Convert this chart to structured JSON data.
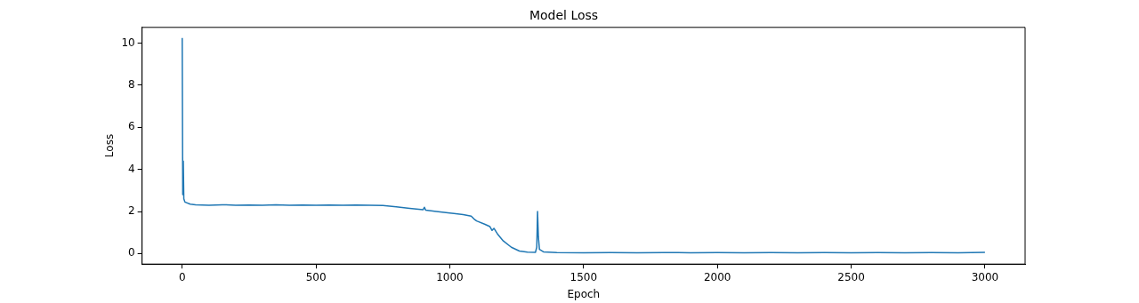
{
  "chart_data": {
    "type": "line",
    "title": "Model Loss",
    "xlabel": "Epoch",
    "ylabel": "Loss",
    "xlim": [
      -150,
      3150
    ],
    "xticks": [
      0,
      500,
      1000,
      1500,
      2000,
      2500,
      3000
    ],
    "ylim": [
      -0.5,
      10.75
    ],
    "yticks": [
      0,
      2,
      4,
      6,
      8,
      10
    ],
    "grid": false,
    "legend": false,
    "marker": "none",
    "line_style": "solid",
    "series": [
      {
        "color": "#1f77b4",
        "x": [
          0,
          2,
          4,
          6,
          10,
          30,
          50,
          100,
          150,
          200,
          250,
          300,
          350,
          400,
          450,
          500,
          550,
          600,
          650,
          700,
          750,
          800,
          850,
          900,
          905,
          910,
          950,
          1000,
          1050,
          1080,
          1090,
          1100,
          1130,
          1150,
          1158,
          1165,
          1180,
          1200,
          1230,
          1260,
          1290,
          1320,
          1325,
          1328,
          1331,
          1335,
          1350,
          1400,
          1500,
          1600,
          1700,
          1800,
          1900,
          2000,
          2100,
          2200,
          2300,
          2400,
          2500,
          2600,
          2700,
          2800,
          2900,
          3000
        ],
        "values": [
          10.25,
          2.8,
          4.4,
          2.6,
          2.45,
          2.35,
          2.32,
          2.3,
          2.32,
          2.3,
          2.31,
          2.3,
          2.32,
          2.3,
          2.31,
          2.3,
          2.31,
          2.3,
          2.31,
          2.3,
          2.29,
          2.22,
          2.15,
          2.08,
          2.2,
          2.06,
          2.0,
          1.93,
          1.85,
          1.78,
          1.65,
          1.55,
          1.4,
          1.28,
          1.1,
          1.2,
          0.9,
          0.6,
          0.3,
          0.12,
          0.07,
          0.06,
          0.3,
          2.0,
          0.8,
          0.2,
          0.08,
          0.05,
          0.04,
          0.05,
          0.04,
          0.05,
          0.04,
          0.05,
          0.04,
          0.05,
          0.04,
          0.05,
          0.04,
          0.05,
          0.04,
          0.05,
          0.04,
          0.06
        ]
      }
    ]
  }
}
